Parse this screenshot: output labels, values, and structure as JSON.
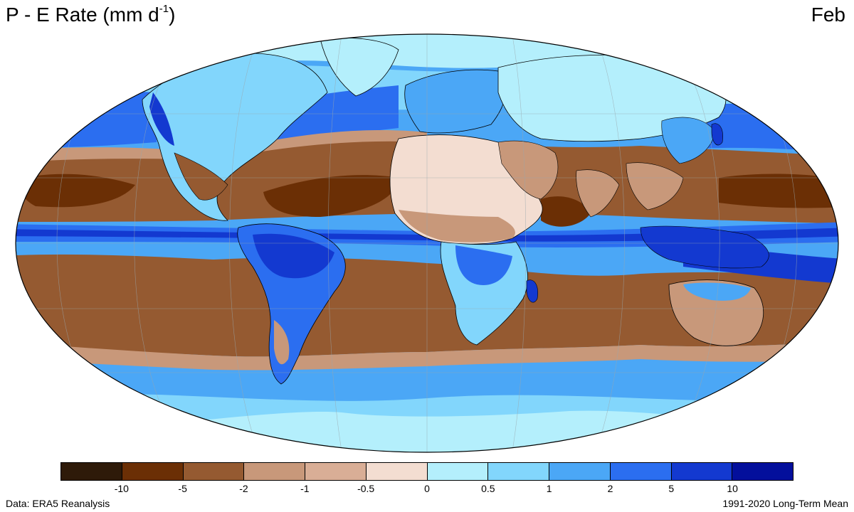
{
  "title": {
    "main": "P - E Rate (mm d",
    "sup": "-1",
    "close": ")"
  },
  "month": "Feb",
  "footer": {
    "source": "Data: ERA5 Reanalysis",
    "period": "1991-2020 Long-Term Mean"
  },
  "colorbar": {
    "colors": [
      "#2e1a09",
      "#6b2f05",
      "#955a31",
      "#c8987a",
      "#d9ae96",
      "#f3ddd1",
      "#b4effc",
      "#82d6fc",
      "#4ba7f6",
      "#2b6ef0",
      "#1339d0",
      "#030f9c"
    ],
    "ticks": [
      "-10",
      "-5",
      "-2",
      "-1",
      "-0.5",
      "0",
      "0.5",
      "1",
      "2",
      "5",
      "10"
    ]
  },
  "map": {
    "projection": "Robinson",
    "palette": {
      "ocean_wet": "#4ba7f6",
      "very_wet": "#1339d0",
      "wet": "#2b6ef0",
      "light_wet": "#82d6fc",
      "slight_wet": "#b4effc",
      "slight_dry": "#f3ddd1",
      "dry": "#c8987a",
      "very_dry": "#955a31",
      "extreme_dry": "#6b2f05",
      "coast": "#000000",
      "graticule": "#9aa7ad"
    }
  }
}
